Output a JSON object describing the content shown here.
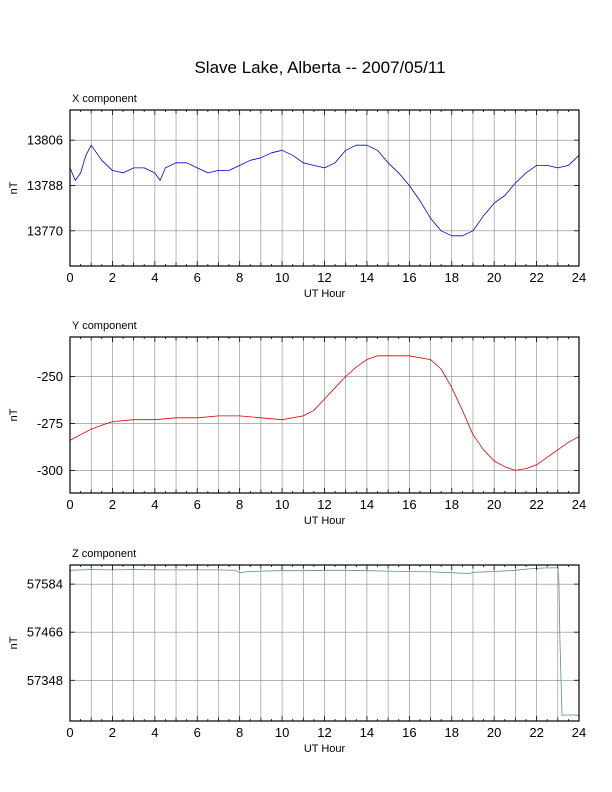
{
  "title": "Slave Lake, Alberta -- 2007/05/11",
  "colors": {
    "x": "#0000cc",
    "y": "#dd0000",
    "z": "#5f8f80",
    "grid": "#888888",
    "frame": "#000000"
  },
  "chart_data": [
    {
      "type": "line",
      "panel_label": "X component",
      "xlabel": "UT Hour",
      "ylabel": "nT",
      "xlim": [
        0,
        24
      ],
      "ylim": [
        13756,
        13818
      ],
      "xticks": [
        "0",
        "2",
        "4",
        "6",
        "8",
        "10",
        "12",
        "14",
        "16",
        "18",
        "20",
        "22",
        "24"
      ],
      "yticks": [
        "13806",
        "13788",
        "13770"
      ],
      "ytick_values": [
        13806,
        13788,
        13770
      ],
      "grid": true,
      "series": [
        {
          "x": [
            0,
            0.25,
            0.5,
            0.75,
            1,
            1.25,
            1.5,
            1.75,
            2,
            2.5,
            3,
            3.5,
            4,
            4.25,
            4.5,
            5,
            5.5,
            6,
            6.5,
            7,
            7.5,
            8,
            8.5,
            9,
            9.5,
            10,
            10.5,
            11,
            11.5,
            12,
            12.5,
            13,
            13.5,
            14,
            14.5,
            15,
            15.5,
            16,
            16.5,
            17,
            17.5,
            18,
            18.5,
            19,
            19.5,
            20,
            20.5,
            21,
            21.5,
            22,
            22.5,
            23,
            23.5,
            24
          ],
          "y": [
            13795,
            13790,
            13793,
            13800,
            13804,
            13801,
            13798,
            13796,
            13794,
            13793,
            13795,
            13795,
            13793,
            13790,
            13795,
            13797,
            13797,
            13795,
            13793,
            13794,
            13794,
            13796,
            13798,
            13799,
            13801,
            13802,
            13800,
            13797,
            13796,
            13795,
            13797,
            13802,
            13804,
            13804,
            13802,
            13797,
            13793,
            13788,
            13782,
            13775,
            13770,
            13768,
            13768,
            13770,
            13776,
            13781,
            13784,
            13789,
            13793,
            13796,
            13796,
            13795,
            13796,
            13800
          ]
        }
      ]
    },
    {
      "type": "line",
      "panel_label": "Y component",
      "xlabel": "UT Hour",
      "ylabel": "nT",
      "xlim": [
        0,
        24
      ],
      "ylim": [
        -312,
        -229
      ],
      "xticks": [
        "0",
        "2",
        "4",
        "6",
        "8",
        "10",
        "12",
        "14",
        "16",
        "18",
        "20",
        "22",
        "24"
      ],
      "yticks": [
        "-250",
        "-275",
        "-300"
      ],
      "ytick_values": [
        -250,
        -275,
        -300
      ],
      "grid": true,
      "series": [
        {
          "x": [
            0,
            0.5,
            1,
            1.5,
            2,
            3,
            4,
            5,
            6,
            7,
            8,
            9,
            10,
            11,
            11.5,
            12,
            12.5,
            13,
            13.5,
            14,
            14.5,
            15,
            16,
            17,
            17.5,
            18,
            18.5,
            19,
            19.5,
            20,
            20.5,
            21,
            21.5,
            22,
            22.5,
            23,
            23.5,
            24
          ],
          "y": [
            -284,
            -281,
            -278,
            -276,
            -274,
            -273,
            -273,
            -272,
            -272,
            -271,
            -271,
            -272,
            -273,
            -271,
            -268,
            -262,
            -256,
            -250,
            -245,
            -241,
            -239,
            -239,
            -239,
            -241,
            -246,
            -256,
            -268,
            -281,
            -289,
            -295,
            -298,
            -300,
            -299,
            -297,
            -293,
            -289,
            -285,
            -282
          ]
        }
      ]
    },
    {
      "type": "line",
      "panel_label": "Z component",
      "xlabel": "UT Hour",
      "ylabel": "nT",
      "xlim": [
        0,
        24
      ],
      "ylim": [
        57248,
        57631
      ],
      "xticks": [
        "0",
        "2",
        "4",
        "6",
        "8",
        "10",
        "12",
        "14",
        "16",
        "18",
        "20",
        "22",
        "24"
      ],
      "yticks": [
        "57584",
        "57466",
        "57348"
      ],
      "ytick_values": [
        57584,
        57466,
        57348
      ],
      "grid": true,
      "series": [
        {
          "x": [
            0,
            1,
            2,
            3,
            4,
            5,
            6,
            7,
            7.8,
            8,
            8.3,
            9,
            10,
            11,
            12,
            13,
            14,
            15,
            16,
            17,
            18,
            18.8,
            19,
            20,
            21,
            21.5,
            22,
            22.5,
            23,
            23.05,
            23.1,
            23.2,
            23.5,
            24
          ],
          "y": [
            57618,
            57620,
            57619,
            57620,
            57619,
            57619,
            57619,
            57619,
            57618,
            57612,
            57614,
            57616,
            57617,
            57617,
            57618,
            57618,
            57617,
            57616,
            57615,
            57614,
            57612,
            57610,
            57613,
            57615,
            57618,
            57621,
            57623,
            57624,
            57624,
            57590,
            57450,
            57262,
            57263,
            57262
          ]
        }
      ]
    }
  ]
}
